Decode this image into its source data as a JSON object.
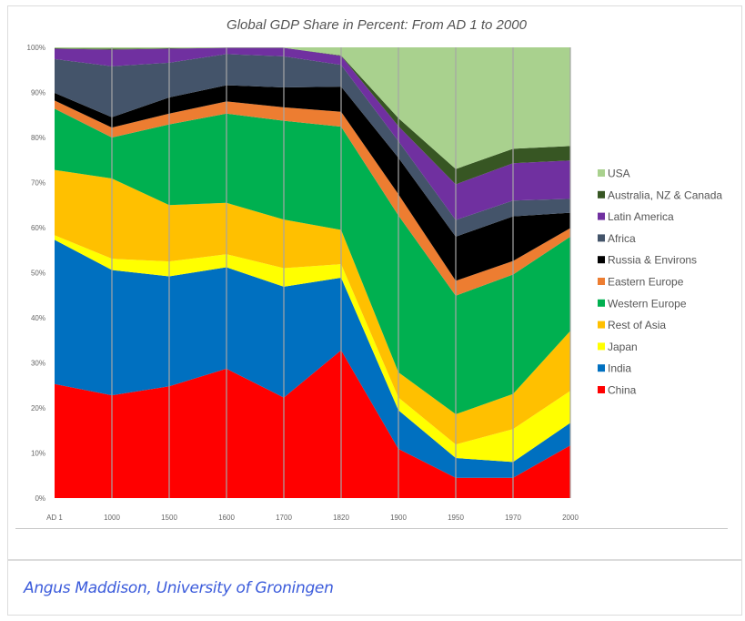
{
  "chart_data": {
    "type": "area",
    "stacked": "percent",
    "title": "Global GDP Share in Percent: From AD 1 to 2000",
    "xlabel": "",
    "ylabel": "",
    "ylim": [
      0,
      100
    ],
    "yticks": [
      "0%",
      "10%",
      "20%",
      "30%",
      "40%",
      "50%",
      "60%",
      "70%",
      "80%",
      "90%",
      "100%"
    ],
    "categories": [
      "AD 1",
      "1000",
      "1500",
      "1600",
      "1700",
      "1820",
      "1900",
      "1950",
      "1970",
      "2000"
    ],
    "grid": "vertical lines at categories",
    "legend": "right",
    "series": [
      {
        "name": "China",
        "color": "#ff0000",
        "values": [
          25.3,
          22.8,
          24.8,
          28.7,
          22.3,
          32.8,
          10.9,
          4.5,
          4.5,
          11.7
        ]
      },
      {
        "name": "India",
        "color": "#0070c0",
        "values": [
          32.0,
          27.8,
          24.4,
          22.5,
          24.6,
          16.1,
          8.6,
          4.4,
          3.5,
          5.0
        ]
      },
      {
        "name": "Japan",
        "color": "#ffff00",
        "values": [
          1.0,
          2.5,
          3.3,
          2.9,
          4.1,
          3.0,
          2.8,
          3.0,
          7.3,
          7.1
        ]
      },
      {
        "name": "Rest of Asia",
        "color": "#ffc000",
        "values": [
          14.5,
          17.8,
          12.5,
          11.4,
          10.8,
          7.6,
          5.6,
          6.7,
          7.8,
          13.3
        ]
      },
      {
        "name": "Western Europe",
        "color": "#00b050",
        "values": [
          13.6,
          9.1,
          17.9,
          19.8,
          21.9,
          22.9,
          34.8,
          26.3,
          26.5,
          20.9
        ]
      },
      {
        "name": "Eastern Europe",
        "color": "#ed7d31",
        "values": [
          1.8,
          2.2,
          2.4,
          2.7,
          3.0,
          3.3,
          4.7,
          3.3,
          3.0,
          1.9
        ]
      },
      {
        "name": "Russia & Environs",
        "color": "#000000",
        "values": [
          1.7,
          2.3,
          3.6,
          3.6,
          4.4,
          5.6,
          8.1,
          9.8,
          9.9,
          3.4
        ]
      },
      {
        "name": "Africa",
        "color": "#44546a",
        "values": [
          7.5,
          11.3,
          7.7,
          6.9,
          6.9,
          4.8,
          3.7,
          3.7,
          3.5,
          3.1
        ]
      },
      {
        "name": "Latin America",
        "color": "#7030a0",
        "values": [
          2.3,
          3.7,
          3.1,
          1.4,
          1.9,
          2.0,
          3.3,
          7.9,
          8.3,
          8.5
        ]
      },
      {
        "name": "Australia, NZ & Canada",
        "color": "#375623",
        "values": [
          0.1,
          0.2,
          0.1,
          0.0,
          0.0,
          0.1,
          1.8,
          3.4,
          3.2,
          3.2
        ]
      },
      {
        "name": "USA",
        "color": "#a9d18e",
        "values": [
          0.2,
          0.3,
          0.2,
          0.1,
          0.1,
          1.8,
          15.7,
          27.0,
          22.5,
          21.9
        ]
      }
    ]
  },
  "caption": "Angus Maddison, University of Groningen"
}
